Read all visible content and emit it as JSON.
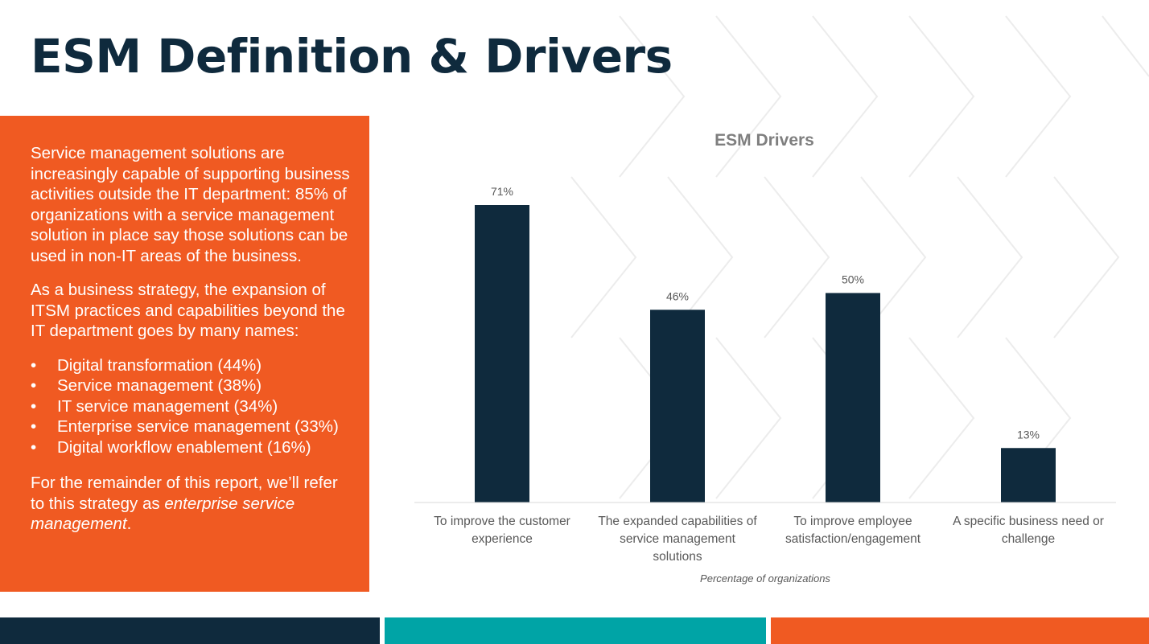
{
  "page": {
    "title": "ESM Definition & Drivers"
  },
  "panel": {
    "paragraph1": "Service management solutions are increasingly capable of supporting business activities outside the IT department: 85% of organizations with a service management solution in place say those solutions can be used in non-IT areas of the business.",
    "paragraph2": "As a business strategy, the expansion of ITSM practices and capabilities beyond the IT department goes by many names:",
    "bullets": [
      "Digital transformation (44%)",
      "Service management (38%)",
      "IT service management (34%)",
      "Enterprise service management (33%)",
      "Digital workflow enablement (16%)"
    ],
    "paragraph3_prefix": "For the remainder of this report, we’ll refer to this strategy as ",
    "paragraph3_emphasis": "enterprise service management",
    "paragraph3_suffix": "."
  },
  "chart_data": {
    "type": "bar",
    "title": "ESM Drivers",
    "categories": [
      "To improve the customer experience",
      "The expanded capabilities of service management solutions",
      "To improve employee satisfaction/engagement",
      "A specific business need or challenge"
    ],
    "category_lines": [
      [
        "To improve the customer",
        "experience"
      ],
      [
        "The expanded capabilities of",
        "service management",
        "solutions"
      ],
      [
        "To improve employee",
        "satisfaction/engagement"
      ],
      [
        "A specific business need or",
        "challenge"
      ]
    ],
    "values": [
      71,
      46,
      50,
      13
    ],
    "data_labels": [
      "71%",
      "46%",
      "50%",
      "13%"
    ],
    "xlabel": "Percentage of organizations",
    "ylabel": "",
    "ylim": [
      0,
      71
    ],
    "grid": false,
    "colors": {
      "bar": "#0f2a3d",
      "axis": "#d9d9d9",
      "text": "#595959",
      "title": "#7f7f7f"
    }
  },
  "footer": {
    "colors": [
      "#0f2a3d",
      "#00a4a6",
      "#f05a22"
    ]
  }
}
